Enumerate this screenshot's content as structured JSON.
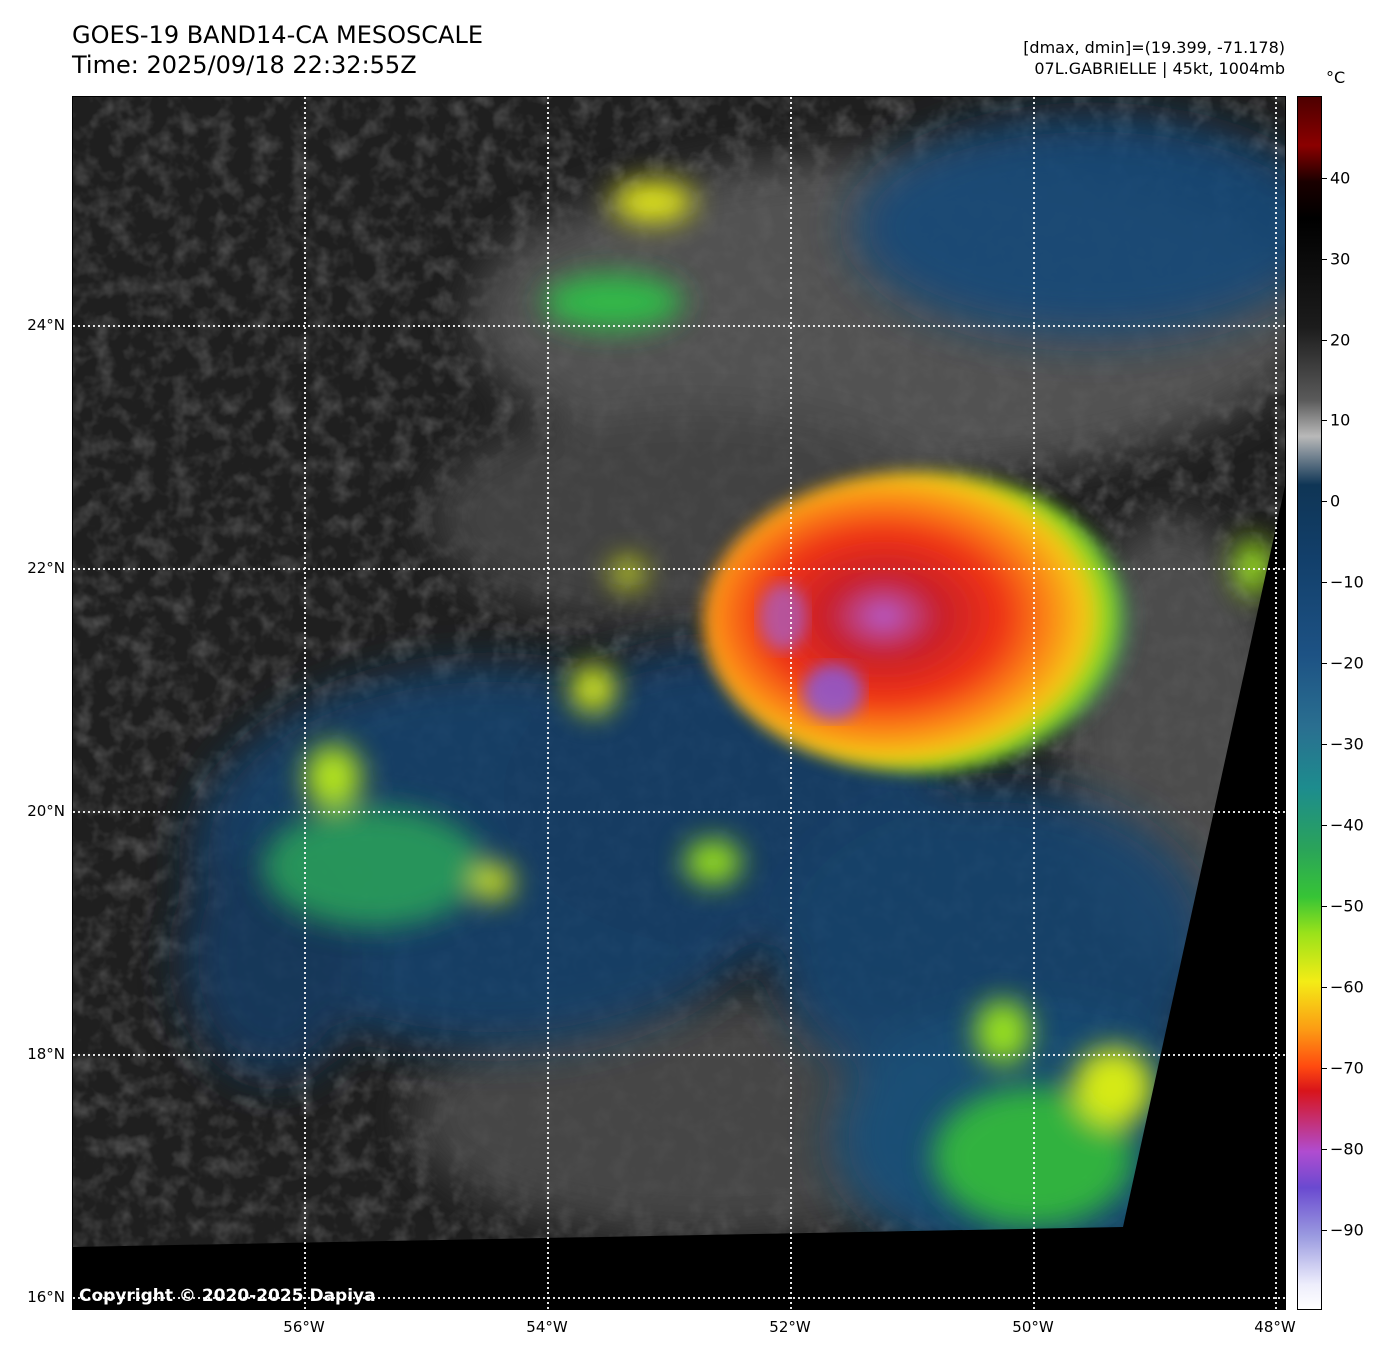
{
  "title_line1": "GOES-19 BAND14-CA MESOSCALE",
  "title_line2": "Time: 2025/09/18 22:32:55Z",
  "info_line1": "[dmax, dmin]=(19.399, -71.178)",
  "info_line2": "07L.GABRIELLE | 45kt, 1004mb",
  "colorbar_unit": "°C",
  "colorbar_ticks": [
    "40",
    "30",
    "20",
    "10",
    "0",
    "−10",
    "−20",
    "−30",
    "−40",
    "−50",
    "−60",
    "−70",
    "−80",
    "−90"
  ],
  "lat_labels": [
    "24°N",
    "22°N",
    "20°N",
    "18°N",
    "16°N"
  ],
  "lon_labels": [
    "56°W",
    "54°W",
    "52°W",
    "50°W",
    "48°W"
  ],
  "copyright": "Copyright © 2020-2025 Dapiya",
  "colors": {
    "background": "#ffffff",
    "cold_core": "#d8141a",
    "cloud_mid": "#1d5284",
    "clear_dark": "#1e1e1e"
  }
}
